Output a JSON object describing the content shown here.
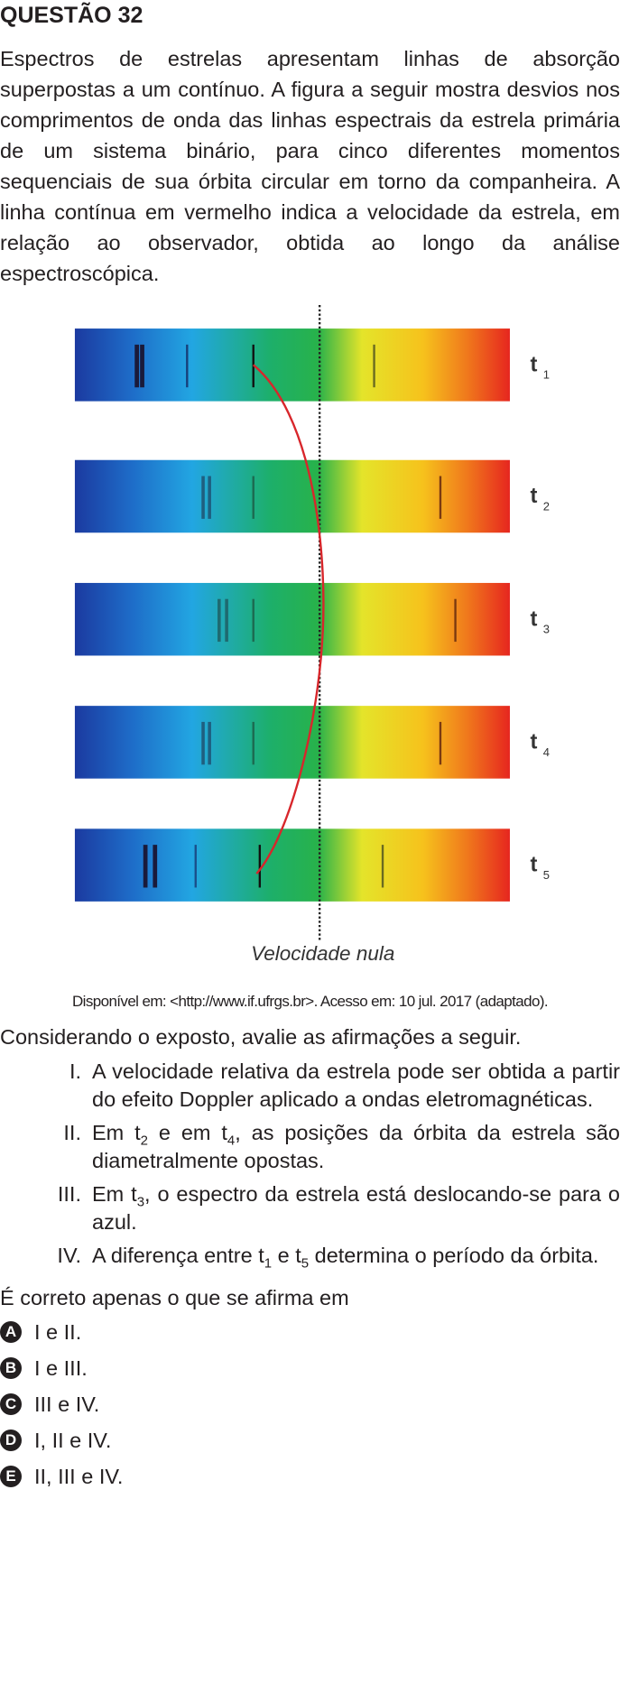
{
  "header": {
    "title": "QUESTÃO 32"
  },
  "statement": "Espectros de estrelas apresentam linhas de absorção superpostas a um contínuo. A figura a seguir mostra desvios nos comprimentos de onda das linhas espectrais da estrela primária de um sistema binário, para cinco diferentes momentos sequenciais de sua órbita circular em torno da companheira. A linha contínua em vermelho indica a velocidade da estrela, em relação ao observador, obtida ao longo da análise espectroscópica.",
  "figure": {
    "time_labels": [
      [
        "t",
        "1"
      ],
      [
        "t",
        "2"
      ],
      [
        "t",
        "3"
      ],
      [
        "t",
        "4"
      ],
      [
        "t",
        "5"
      ]
    ],
    "axis_label": "Velocidade nula"
  },
  "source": "Disponível em: <http://www.if.ufrgs.br>. Acesso em: 10 jul. 2017 (adaptado).",
  "prompt": "Considerando o exposto, avalie as afirmações a seguir.",
  "items": [
    {
      "numeral": "I.",
      "parts": [
        "A velocidade relativa da estrela pode ser obtida a partir do efeito Doppler aplicado a ondas eletromagnéticas."
      ]
    },
    {
      "numeral": "II.",
      "parts": [
        "Em t",
        "2",
        " e em t",
        "4",
        ", as posições da órbita da estrela são diametralmente opostas."
      ]
    },
    {
      "numeral": "III.",
      "parts": [
        "Em t",
        "3",
        ", o espectro da estrela está deslocando-se para o azul."
      ]
    },
    {
      "numeral": "IV.",
      "parts": [
        "A diferença entre t",
        "1",
        " e t",
        "5",
        " determina o período da órbita."
      ]
    }
  ],
  "question": "É correto apenas o que se afirma em",
  "options": [
    {
      "letter": "A",
      "text": "I e II."
    },
    {
      "letter": "B",
      "text": "I e III."
    },
    {
      "letter": "C",
      "text": "III e IV."
    },
    {
      "letter": "D",
      "text": "I, II e IV."
    },
    {
      "letter": "E",
      "text": "II, III e IV."
    }
  ]
}
